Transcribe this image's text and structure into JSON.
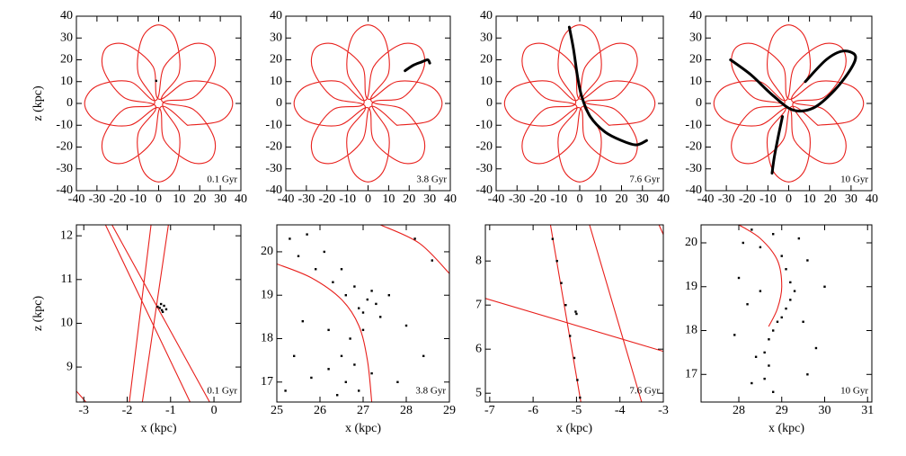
{
  "chart_data": [
    {
      "type": "line",
      "annotation": "0.1 Gyr",
      "ylabel": "z (kpc)",
      "xlim": [
        -40,
        40
      ],
      "ylim": [
        -40,
        40
      ],
      "xticks": [
        -40,
        -30,
        -20,
        -10,
        0,
        10,
        20,
        30,
        40
      ],
      "yticks": [
        -40,
        -30,
        -20,
        -10,
        0,
        10,
        20,
        30,
        40
      ],
      "series": [
        {
          "type": "line",
          "color": "#e8201c",
          "x": [
            14,
            30,
            36,
            30,
            14,
            0,
            -2.8,
            -15.6,
            -25.5,
            -26.9,
            -17,
            -1.4,
            -10,
            -8,
            0,
            8,
            10,
            2,
            17,
            26.9,
            25.5,
            15.6,
            2.8,
            -1.4,
            -14,
            -30,
            -36,
            -30,
            -14,
            0,
            2.8,
            15.6,
            25.5,
            26.9,
            17,
            1.4,
            10,
            8,
            0,
            -8,
            -10,
            -2,
            -17,
            -26.9,
            -25.5,
            -15.6,
            -2.8,
            1.4,
            14
          ],
          "values": [
            -10,
            -8,
            0,
            8,
            10,
            2,
            17,
            26.9,
            25.5,
            15.6,
            2.8,
            -1.4,
            -14,
            -30,
            -36,
            -30,
            -14,
            0,
            2.8,
            15.6,
            25.5,
            26.9,
            17,
            1.4,
            10,
            8,
            0,
            -8,
            -10,
            -2,
            -17,
            -26.9,
            -25.5,
            -15.6,
            -2.8,
            1.4,
            14,
            30,
            36,
            30,
            14,
            0,
            -2.8,
            -15.6,
            -25.5,
            -26.9,
            -17,
            -1.4,
            -10
          ]
        },
        {
          "type": "scatter",
          "color": "#000000",
          "x": [
            -1.2
          ],
          "values": [
            10.35
          ]
        }
      ]
    },
    {
      "type": "line",
      "annotation": "3.8 Gyr",
      "xlim": [
        -40,
        40
      ],
      "ylim": [
        -40,
        40
      ],
      "xticks": [
        -40,
        -30,
        -20,
        -10,
        0,
        10,
        20,
        30,
        40
      ],
      "yticks": [
        -40,
        -30,
        -20,
        -10,
        0,
        10,
        20,
        30,
        40
      ],
      "series": [
        {
          "type": "line",
          "color": "#e8201c",
          "x": [
            14,
            30,
            36,
            30,
            14,
            0,
            -2.8,
            -15.6,
            -25.5,
            -26.9,
            -17,
            -1.4,
            -10,
            -8,
            0,
            8,
            10,
            2,
            17,
            26.9,
            25.5,
            15.6,
            2.8,
            -1.4,
            -14,
            -30,
            -36,
            -30,
            -14,
            0,
            2.8,
            15.6,
            25.5,
            26.9,
            17,
            1.4,
            10,
            8,
            0,
            -8,
            -10,
            -2,
            -17,
            -26.9,
            -25.5,
            -15.6,
            -2.8,
            1.4,
            14
          ],
          "values": [
            -10,
            -8,
            0,
            8,
            10,
            2,
            17,
            26.9,
            25.5,
            15.6,
            2.8,
            -1.4,
            -14,
            -30,
            -36,
            -30,
            -14,
            0,
            2.8,
            15.6,
            25.5,
            26.9,
            17,
            1.4,
            10,
            8,
            0,
            -8,
            -10,
            -2,
            -17,
            -26.9,
            -25.5,
            -15.6,
            -2.8,
            1.4,
            14,
            30,
            36,
            30,
            14,
            0,
            -2.8,
            -15.6,
            -25.5,
            -26.9,
            -17,
            -1.4,
            -10
          ]
        },
        {
          "type": "line",
          "color": "#000000",
          "x": [
            18,
            22,
            26,
            29,
            30
          ],
          "values": [
            15,
            17.5,
            19,
            20,
            18.5
          ]
        }
      ]
    },
    {
      "type": "line",
      "annotation": "7.6 Gyr",
      "xlim": [
        -40,
        40
      ],
      "ylim": [
        -40,
        40
      ],
      "xticks": [
        -40,
        -30,
        -20,
        -10,
        0,
        10,
        20,
        30,
        40
      ],
      "yticks": [
        -40,
        -30,
        -20,
        -10,
        0,
        10,
        20,
        30,
        40
      ],
      "series": [
        {
          "type": "line",
          "color": "#e8201c",
          "x": [
            14,
            30,
            36,
            30,
            14,
            0,
            -2.8,
            -15.6,
            -25.5,
            -26.9,
            -17,
            -1.4,
            -10,
            -8,
            0,
            8,
            10,
            2,
            17,
            26.9,
            25.5,
            15.6,
            2.8,
            -1.4,
            -14,
            -30,
            -36,
            -30,
            -14,
            0,
            2.8,
            15.6,
            25.5,
            26.9,
            17,
            1.4,
            10,
            8,
            0,
            -8,
            -10,
            -2,
            -17,
            -26.9,
            -25.5,
            -15.6,
            -2.8,
            1.4,
            14
          ],
          "values": [
            -10,
            -8,
            0,
            8,
            10,
            2,
            17,
            26.9,
            25.5,
            15.6,
            2.8,
            -1.4,
            -14,
            -30,
            -36,
            -30,
            -14,
            0,
            2.8,
            15.6,
            25.5,
            26.9,
            17,
            1.4,
            10,
            8,
            0,
            -8,
            -10,
            -2,
            -17,
            -26.9,
            -25.5,
            -15.6,
            -2.8,
            1.4,
            14,
            30,
            36,
            30,
            14,
            0,
            -2.8,
            -15.6,
            -25.5,
            -26.9,
            -17,
            -1.4,
            -10
          ]
        },
        {
          "type": "line",
          "color": "#000000",
          "x": [
            -5,
            -3,
            -1,
            1,
            5,
            12,
            20,
            27,
            32
          ],
          "values": [
            35,
            25,
            12,
            3,
            -6,
            -13,
            -17,
            -19,
            -17
          ]
        }
      ]
    },
    {
      "type": "line",
      "annotation": "10 Gyr",
      "xlim": [
        -40,
        40
      ],
      "ylim": [
        -40,
        40
      ],
      "xticks": [
        -40,
        -30,
        -20,
        -10,
        0,
        10,
        20,
        30,
        40
      ],
      "yticks": [
        -40,
        -30,
        -20,
        -10,
        0,
        10,
        20,
        30,
        40
      ],
      "series": [
        {
          "type": "line",
          "color": "#e8201c",
          "x": [
            14,
            30,
            36,
            30,
            14,
            0,
            -2.8,
            -15.6,
            -25.5,
            -26.9,
            -17,
            -1.4,
            -10,
            -8,
            0,
            8,
            10,
            2,
            17,
            26.9,
            25.5,
            15.6,
            2.8,
            -1.4,
            -14,
            -30,
            -36,
            -30,
            -14,
            0,
            2.8,
            15.6,
            25.5,
            26.9,
            17,
            1.4,
            10,
            8,
            0,
            -8,
            -10,
            -2,
            -17,
            -26.9,
            -25.5,
            -15.6,
            -2.8,
            1.4,
            14
          ],
          "values": [
            -10,
            -8,
            0,
            8,
            10,
            2,
            17,
            26.9,
            25.5,
            15.6,
            2.8,
            -1.4,
            -14,
            -30,
            -36,
            -30,
            -14,
            0,
            2.8,
            15.6,
            25.5,
            26.9,
            17,
            1.4,
            10,
            8,
            0,
            -8,
            -10,
            -2,
            -17,
            -26.9,
            -25.5,
            -15.6,
            -2.8,
            1.4,
            14,
            30,
            36,
            30,
            14,
            0,
            -2.8,
            -15.6,
            -25.5,
            -26.9,
            -17,
            -1.4,
            -10
          ]
        },
        {
          "type": "line",
          "color": "#000000",
          "x": [
            -28,
            -18,
            -8,
            2,
            12,
            22,
            30,
            32,
            26,
            18,
            8,
            null,
            -3,
            -5,
            -7,
            -8
          ],
          "values": [
            20,
            13,
            4,
            -3,
            -2,
            6,
            16,
            22,
            24,
            20,
            10,
            null,
            -6,
            -15,
            -25,
            -32
          ]
        }
      ]
    },
    {
      "type": "line",
      "annotation": "0.1 Gyr",
      "ylabel": "z (kpc)",
      "xlabel": "x (kpc)",
      "xlim": [
        -3.17,
        0.62
      ],
      "ylim": [
        8.2,
        12.25
      ],
      "xticks": [
        -3,
        -2,
        -1,
        0
      ],
      "yticks": [
        9,
        10,
        11,
        12
      ],
      "series": [
        {
          "type": "line",
          "color": "#e8201c",
          "x": [
            -2.5,
            -0.55,
            null,
            -2.35,
            -0.1,
            null,
            -1.45,
            -1.95,
            null,
            -1.05,
            -1.65,
            null,
            -3.17,
            -2.95
          ],
          "values": [
            12.25,
            8.2,
            null,
            12.25,
            8.2,
            null,
            12.25,
            8.2,
            null,
            12.25,
            8.2,
            null,
            8.45,
            8.2
          ]
        },
        {
          "type": "scatter",
          "color": "#000000",
          "x": [
            -1.25,
            -1.15,
            -1.2,
            -1.3,
            -1.1,
            -1.22,
            -1.18
          ],
          "values": [
            10.35,
            10.4,
            10.3,
            10.38,
            10.32,
            10.44,
            10.26
          ]
        }
      ]
    },
    {
      "type": "line",
      "annotation": "3.8 Gyr",
      "xlabel": "x (kpc)",
      "xlim": [
        25,
        29
      ],
      "ylim": [
        16.54,
        20.62
      ],
      "xticks": [
        25,
        26,
        27,
        28,
        29
      ],
      "yticks": [
        17,
        18,
        19,
        20
      ],
      "series": [
        {
          "type": "line",
          "color": "#e8201c",
          "x": [
            25,
            25.8,
            26.5,
            26.9,
            27.1,
            27.2,
            null,
            27.4,
            28.3,
            29
          ],
          "values": [
            19.72,
            19.4,
            18.9,
            18.3,
            17.5,
            16.54,
            null,
            20.62,
            20.2,
            19.5
          ]
        },
        {
          "type": "scatter",
          "color": "#000000",
          "x": [
            25.3,
            25.5,
            25.7,
            25.9,
            26.1,
            26.3,
            26.5,
            26.6,
            26.8,
            26.9,
            27.0,
            27.1,
            27.2,
            27.3,
            27.4,
            27.6,
            27.0,
            26.7,
            26.5,
            26.8,
            26.6,
            26.9,
            26.4,
            27.2,
            26.2,
            25.6,
            25.4,
            25.8,
            28.0,
            28.4,
            28.6,
            28.2,
            26.2,
            27.8,
            25.2
          ],
          "values": [
            20.3,
            19.9,
            20.4,
            19.6,
            20.0,
            19.3,
            19.6,
            19.0,
            19.2,
            18.7,
            18.6,
            18.9,
            19.1,
            18.8,
            18.5,
            19.0,
            18.2,
            18.0,
            17.6,
            17.4,
            17.0,
            16.8,
            16.7,
            17.2,
            18.2,
            18.4,
            17.6,
            17.1,
            18.3,
            17.6,
            19.8,
            20.3,
            17.3,
            17.0,
            16.8
          ]
        }
      ]
    },
    {
      "type": "line",
      "annotation": "7.6 Gyr",
      "xlabel": "x (kpc)",
      "xlim": [
        -7.1,
        -3
      ],
      "ylim": [
        4.8,
        8.82
      ],
      "xticks": [
        -7,
        -6,
        -5,
        -4,
        -3
      ],
      "yticks": [
        5,
        6,
        7,
        8
      ],
      "series": [
        {
          "type": "line",
          "color": "#e8201c",
          "x": [
            -5.6,
            -4.9,
            null,
            -4.7,
            -3.5,
            null,
            -7.1,
            -3,
            null,
            -3.1,
            -3
          ],
          "values": [
            8.82,
            4.8,
            null,
            8.82,
            4.8,
            null,
            7.15,
            5.95,
            null,
            8.82,
            8.6
          ]
        },
        {
          "type": "scatter",
          "color": "#000000",
          "x": [
            -5.55,
            -5.45,
            -5.35,
            -5.25,
            -5.02,
            -5.15,
            -5.05,
            -4.98,
            -4.92,
            -5.0
          ],
          "values": [
            8.5,
            8,
            7.5,
            7,
            6.85,
            6.3,
            5.8,
            5.3,
            4.9,
            6.8
          ]
        }
      ]
    },
    {
      "type": "line",
      "annotation": "10 Gyr",
      "xlabel": "x (kpc)",
      "xlim": [
        27.12,
        31.1
      ],
      "ylim": [
        16.37,
        20.41
      ],
      "xticks": [
        28,
        29,
        30,
        31
      ],
      "yticks": [
        17,
        18,
        19,
        20
      ],
      "series": [
        {
          "type": "line",
          "color": "#e8201c",
          "x": [
            28,
            28.5,
            28.9,
            29.0,
            28.9,
            28.7
          ],
          "values": [
            20.41,
            20.1,
            19.6,
            19.0,
            18.5,
            18.1
          ]
        },
        {
          "type": "scatter",
          "color": "#000000",
          "x": [
            28.3,
            28.5,
            28.8,
            29.0,
            29.1,
            29.2,
            29.3,
            29.2,
            29.1,
            29.0,
            28.9,
            28.8,
            28.7,
            28.6,
            28.7,
            28.6,
            28.8,
            28.4,
            28.2,
            28.0,
            28.3,
            29.5,
            29.6,
            29.8,
            30.0,
            27.9,
            28.5,
            29.4,
            29.6,
            28.1
          ],
          "values": [
            20.3,
            19.9,
            20.2,
            19.7,
            19.4,
            19.1,
            18.9,
            18.7,
            18.5,
            18.3,
            18.2,
            18.0,
            17.8,
            17.5,
            17.2,
            16.9,
            16.6,
            17.4,
            18.6,
            19.2,
            16.8,
            18.2,
            19.6,
            17.6,
            19.0,
            17.9,
            18.9,
            20.1,
            17.0,
            20.0
          ]
        }
      ]
    }
  ]
}
